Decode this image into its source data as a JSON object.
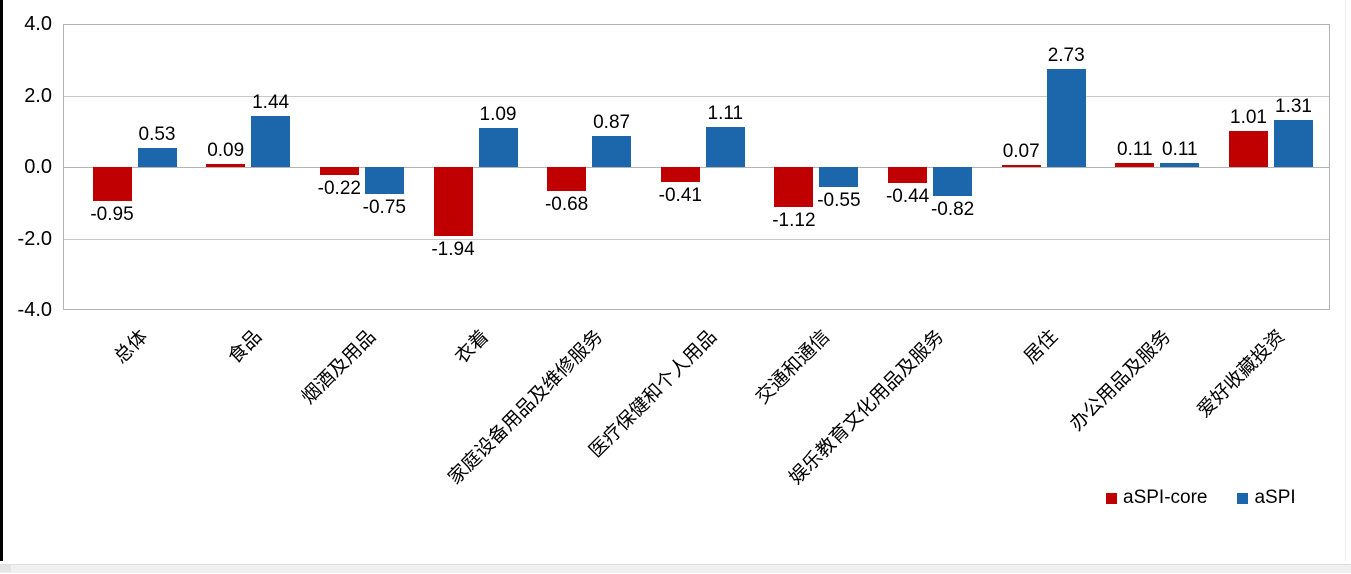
{
  "chart_data": {
    "type": "bar",
    "title": "",
    "xlabel": "",
    "ylabel": "",
    "ylim": [
      -4.0,
      4.0
    ],
    "yticks": [
      4.0,
      2.0,
      0.0,
      -2.0,
      -4.0
    ],
    "ytick_labels": [
      "4.0",
      "2.0",
      "0.0",
      "-2.0",
      "-4.0"
    ],
    "grid": true,
    "bar_value_labels": true,
    "legend_position": "bottom-right",
    "categories": [
      "总体",
      "食品",
      "烟酒及用品",
      "衣着",
      "家庭设备用品及维修服务",
      "医疗保健和个人用品",
      "交通和通信",
      "娱乐教育文化用品及服务",
      "居住",
      "办公用品及服务",
      "爱好收藏投资"
    ],
    "series": [
      {
        "name": "aSPI-core",
        "color": "#c00000",
        "values": [
          -0.95,
          0.09,
          -0.22,
          -1.94,
          -0.68,
          -0.41,
          -1.12,
          -0.44,
          0.07,
          0.11,
          1.01
        ],
        "value_labels": [
          "-0.95",
          "0.09",
          "-0.22",
          "-1.94",
          "-0.68",
          "-0.41",
          "-1.12",
          "-0.44",
          "0.07",
          "0.11",
          "1.01"
        ]
      },
      {
        "name": "aSPI",
        "color": "#1c66ac",
        "values": [
          0.53,
          1.44,
          -0.75,
          1.09,
          0.87,
          1.11,
          -0.55,
          -0.82,
          2.73,
          0.11,
          1.31
        ],
        "value_labels": [
          "0.53",
          "1.44",
          "-0.75",
          "1.09",
          "0.87",
          "1.11",
          "-0.55",
          "-0.82",
          "2.73",
          "0.11",
          "1.31"
        ]
      }
    ]
  },
  "legend": {
    "items": [
      {
        "label": "aSPI-core",
        "color": "#c00000"
      },
      {
        "label": "aSPI",
        "color": "#1c66ac"
      }
    ]
  }
}
